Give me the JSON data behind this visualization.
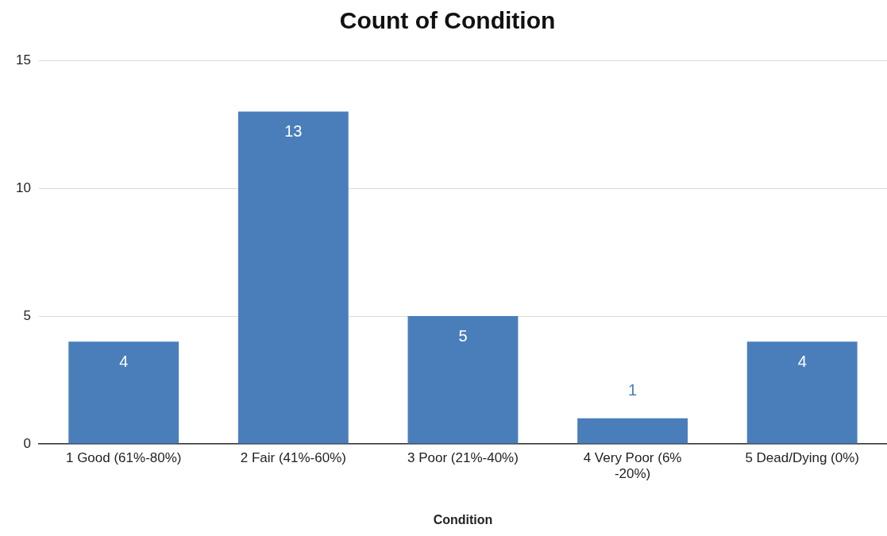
{
  "chart_data": {
    "type": "bar",
    "title": "Count of Condition",
    "xlabel": "Condition",
    "categories": [
      "1 Good (61%-80%)",
      "2 Fair (41%-60%)",
      "3 Poor (21%-40%)",
      "4 Very Poor (6% -20%)",
      "5 Dead/Dying (0%)"
    ],
    "values": [
      4,
      13,
      5,
      1,
      4
    ],
    "color": "#4a7ebb",
    "ylim": [
      0,
      15
    ],
    "yticks": [
      0,
      5,
      10,
      15
    ],
    "grid": "y",
    "legend": false,
    "data_labels": true
  }
}
